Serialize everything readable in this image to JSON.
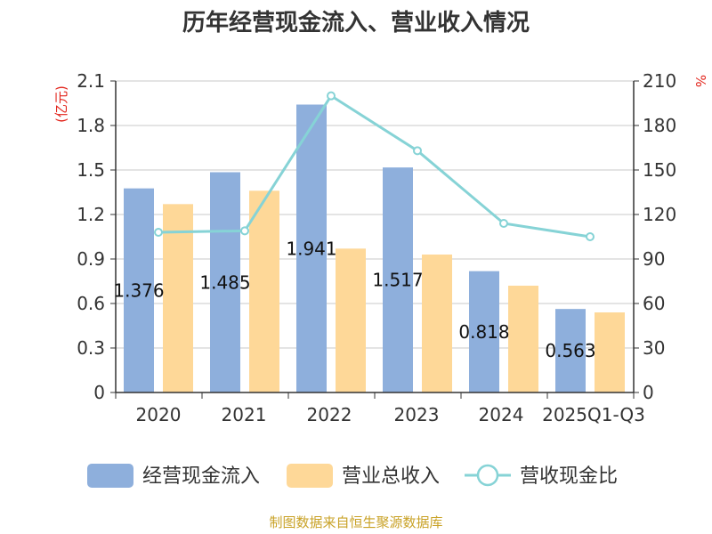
{
  "chart_data": {
    "type": "bar",
    "title": "历年经营现金流入、营业收入情况",
    "categories": [
      "2020",
      "2021",
      "2022",
      "2023",
      "2024",
      "2025Q1-Q3"
    ],
    "left_axis": {
      "unit": "(亿元)",
      "range": [
        0,
        2.1
      ],
      "ticks": [
        "0",
        "0.3",
        "0.6",
        "0.9",
        "1.2",
        "1.5",
        "1.8",
        "2.1"
      ]
    },
    "right_axis": {
      "unit": "%",
      "range": [
        0,
        210
      ],
      "ticks": [
        "0",
        "30",
        "60",
        "90",
        "120",
        "150",
        "180",
        "210"
      ]
    },
    "series": [
      {
        "name": "经营现金流入",
        "type": "bar",
        "axis": "left",
        "color": "#8eafdc",
        "values": [
          1.376,
          1.485,
          1.941,
          1.517,
          0.818,
          0.563
        ],
        "labels": [
          "1.376",
          "1.485",
          "1.941",
          "1.517",
          "0.818",
          "0.563"
        ]
      },
      {
        "name": "营业总收入",
        "type": "bar",
        "axis": "left",
        "color": "#fed898",
        "values": [
          1.27,
          1.36,
          0.97,
          0.93,
          0.72,
          0.54
        ]
      },
      {
        "name": "营收现金比",
        "type": "line",
        "axis": "right",
        "color": "#86d3d6",
        "values": [
          108,
          109,
          200,
          163,
          114,
          105
        ]
      }
    ],
    "grid": true,
    "legend_position": "bottom",
    "source": "制图数据来自恒生聚源数据库"
  }
}
